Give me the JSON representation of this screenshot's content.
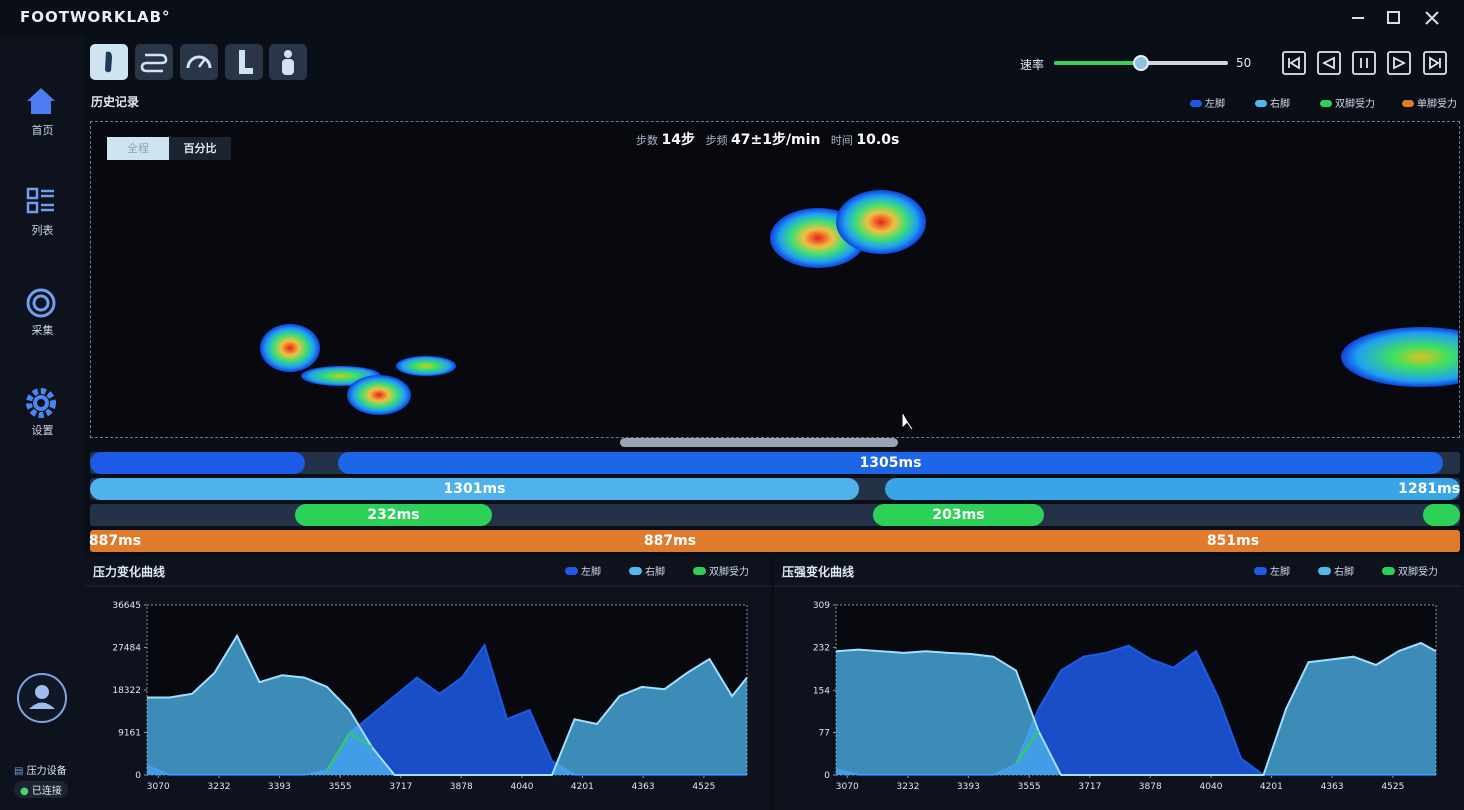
{
  "app": {
    "brand": "FOOTWORKLAB°"
  },
  "nav": {
    "items": [
      "首页",
      "列表",
      "采集",
      "设置"
    ],
    "device": "压力设备",
    "status": "已连接"
  },
  "toolbar": {
    "rate_label": "速率",
    "rate_value": 50
  },
  "history": {
    "title": "历史记录",
    "legend": [
      "左脚",
      "右脚",
      "双脚受力",
      "单脚受力"
    ],
    "tabs": [
      "全程",
      "百分比"
    ],
    "stats": [
      {
        "label": "步数",
        "value": "14步"
      },
      {
        "label": "步频",
        "value": "47±1步/min"
      },
      {
        "label": "时间",
        "value": "10.0s"
      }
    ]
  },
  "timeline": {
    "left_foot": [
      "1305ms"
    ],
    "right_foot": [
      "1301ms",
      "1281ms"
    ],
    "double_support": [
      "232ms",
      "203ms"
    ],
    "single_support": [
      "887ms",
      "887ms",
      "851ms"
    ]
  },
  "chart_data": [
    {
      "type": "area",
      "title": "压力变化曲线",
      "x": [
        3040,
        3100,
        3160,
        3220,
        3280,
        3340,
        3400,
        3460,
        3520,
        3580,
        3640,
        3700,
        3760,
        3820,
        3880,
        3940,
        4000,
        4060,
        4120,
        4180,
        4240,
        4300,
        4360,
        4420,
        4480,
        4540,
        4600,
        4640
      ],
      "xlim": [
        3040,
        4640
      ],
      "xticks": [
        3070,
        3232,
        3393,
        3555,
        3717,
        3878,
        4040,
        4201,
        4363,
        4525
      ],
      "ylim": [
        0,
        36645
      ],
      "yticks": [
        0,
        9161,
        18322,
        27484,
        36645
      ],
      "series": [
        {
          "name": "左脚",
          "color": "#1d5be6",
          "values": [
            2000,
            0,
            0,
            0,
            0,
            0,
            0,
            0,
            1000,
            9000,
            13000,
            17000,
            21000,
            17500,
            21000,
            28000,
            12000,
            14000,
            3000,
            0,
            0,
            0,
            0,
            0,
            0,
            0,
            0,
            0
          ]
        },
        {
          "name": "右脚",
          "color": "#4fb8f0",
          "values": [
            16700,
            16700,
            17500,
            22000,
            30000,
            20000,
            21500,
            21000,
            19000,
            14000,
            6000,
            0,
            0,
            0,
            0,
            0,
            0,
            0,
            0,
            12000,
            11000,
            17000,
            19000,
            18500,
            22000,
            25000,
            17000,
            21000
          ]
        },
        {
          "name": "双脚受力",
          "color": "#2ed158",
          "values": [
            null,
            null,
            null,
            null,
            null,
            null,
            null,
            null,
            1000,
            9000,
            6000,
            null,
            null,
            null,
            null,
            null,
            null,
            null,
            null,
            null,
            null,
            null,
            null,
            null,
            null,
            null,
            null,
            null
          ]
        }
      ]
    },
    {
      "type": "area",
      "title": "压强变化曲线",
      "x": [
        3040,
        3100,
        3160,
        3220,
        3280,
        3340,
        3400,
        3460,
        3520,
        3580,
        3640,
        3700,
        3760,
        3820,
        3880,
        3940,
        4000,
        4060,
        4120,
        4180,
        4240,
        4300,
        4360,
        4420,
        4480,
        4540,
        4600,
        4640
      ],
      "xlim": [
        3040,
        4640
      ],
      "xticks": [
        3070,
        3232,
        3393,
        3555,
        3717,
        3878,
        4040,
        4201,
        4363,
        4525
      ],
      "ylim": [
        0,
        309
      ],
      "yticks": [
        0,
        77,
        154,
        232,
        309
      ],
      "series": [
        {
          "name": "左脚",
          "color": "#1d5be6",
          "values": [
            10,
            0,
            0,
            0,
            0,
            0,
            0,
            0,
            20,
            120,
            190,
            215,
            222,
            235,
            210,
            195,
            225,
            140,
            30,
            0,
            0,
            0,
            0,
            0,
            0,
            0,
            0,
            0
          ]
        },
        {
          "name": "右脚",
          "color": "#4fb8f0",
          "values": [
            225,
            228,
            225,
            222,
            225,
            222,
            220,
            215,
            190,
            80,
            0,
            0,
            0,
            0,
            0,
            0,
            0,
            0,
            0,
            0,
            120,
            205,
            210,
            215,
            200,
            225,
            240,
            225
          ]
        },
        {
          "name": "双脚受力",
          "color": "#2ed158",
          "values": [
            null,
            null,
            null,
            null,
            null,
            null,
            null,
            null,
            20,
            80,
            null,
            null,
            null,
            null,
            null,
            null,
            null,
            null,
            null,
            null,
            null,
            null,
            null,
            null,
            null,
            null,
            null,
            null
          ]
        }
      ]
    }
  ]
}
